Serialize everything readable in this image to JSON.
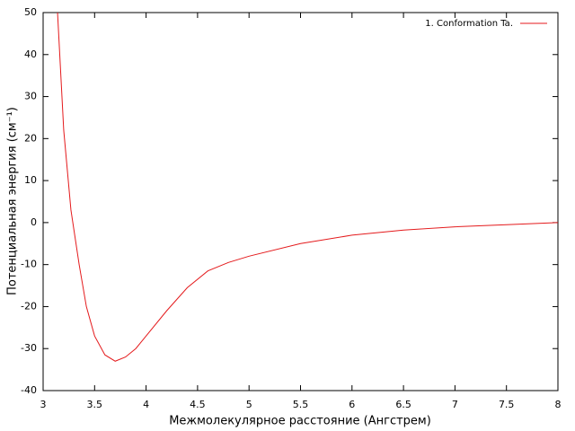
{
  "chart_data": {
    "type": "line",
    "xlabel": "Межмолекулярное расстояние (Ангстрем)",
    "ylabel": "Потенциальная энергия (см⁻¹)",
    "x": [
      3.14,
      3.2,
      3.27,
      3.35,
      3.42,
      3.5,
      3.6,
      3.7,
      3.8,
      3.9,
      4.0,
      4.2,
      4.4,
      4.6,
      4.8,
      5.0,
      5.5,
      6.0,
      6.5,
      7.0,
      7.5,
      8.0
    ],
    "series": [
      {
        "name": "1. Conformation Ta.",
        "color": "#e41a1c",
        "values": [
          50,
          22,
          3,
          -10,
          -20,
          -27,
          -31.5,
          -33,
          -32,
          -30,
          -27,
          -21,
          -15.5,
          -11.5,
          -9.5,
          -8,
          -5,
          -3,
          -1.8,
          -1.0,
          -0.5,
          0
        ]
      }
    ],
    "xlim": [
      3,
      8
    ],
    "xticks": [
      3,
      3.5,
      4,
      4.5,
      5,
      5.5,
      6,
      6.5,
      7,
      7.5,
      8
    ],
    "ylim": [
      -40,
      50
    ],
    "yticks": [
      -40,
      -30,
      -20,
      -10,
      0,
      10,
      20,
      30,
      40,
      50
    ],
    "grid": false,
    "legend": "top-right"
  }
}
